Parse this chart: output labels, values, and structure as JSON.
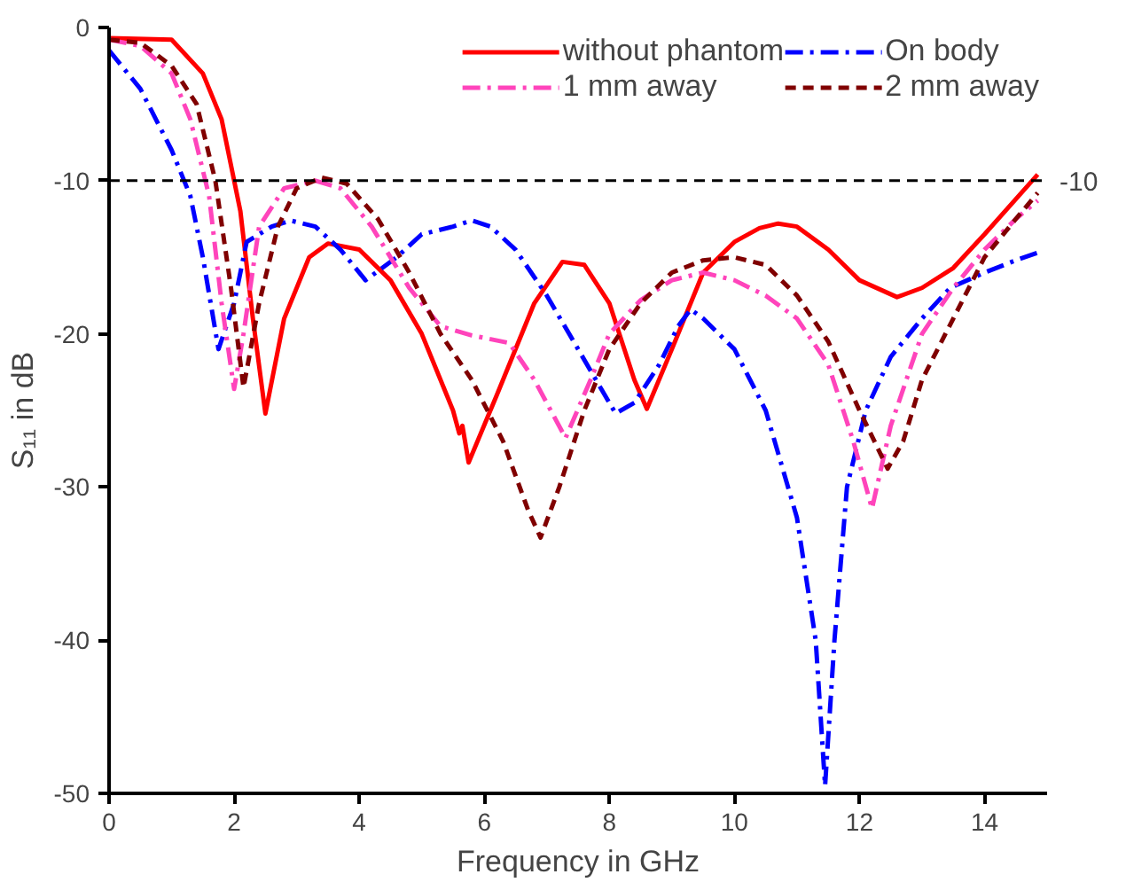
{
  "chart_data": {
    "type": "line",
    "xlabel": "Frequency in GHz",
    "ylabel": "S₁₁ in dB",
    "xlim": [
      0,
      15
    ],
    "ylim": [
      -50,
      0
    ],
    "xticks": [
      0,
      2,
      4,
      6,
      8,
      10,
      12,
      14
    ],
    "yticks": [
      0,
      -10,
      -20,
      -30,
      -40,
      -50
    ],
    "grid": false,
    "legend": "top right",
    "marker": "none",
    "ref_lines": [
      {
        "axis": "y",
        "value": -10,
        "label": "-10",
        "color": "#000000",
        "line_style": "dashed"
      }
    ],
    "series": [
      {
        "name": "without phantom",
        "color": "#ff0000",
        "line_style": "solid",
        "x": [
          0,
          1,
          1.5,
          1.8,
          2.1,
          2.3,
          2.5,
          2.8,
          3.2,
          3.5,
          4,
          4.5,
          5,
          5.5,
          5.6,
          5.65,
          5.75,
          6.2,
          6.8,
          7.25,
          7.6,
          8,
          8.4,
          8.6,
          9,
          9.5,
          10,
          10.4,
          10.7,
          11,
          11.5,
          12,
          12.6,
          13,
          13.5,
          14,
          14.5,
          14.85
        ],
        "values": [
          -0.7,
          -0.8,
          -3,
          -6,
          -12,
          -19,
          -25.2,
          -19,
          -15,
          -14.1,
          -14.5,
          -16.5,
          -20,
          -25,
          -26.5,
          -26,
          -28.4,
          -24,
          -18,
          -15.3,
          -15.5,
          -18,
          -23,
          -24.9,
          -21,
          -16,
          -14,
          -13.1,
          -12.8,
          -13,
          -14.5,
          -16.5,
          -17.6,
          -17,
          -15.7,
          -13.5,
          -11.2,
          -9.6
        ]
      },
      {
        "name": "On body",
        "color": "#0000ff",
        "line_style": "dashdot",
        "x": [
          0,
          0.5,
          1,
          1.3,
          1.5,
          1.75,
          2.0,
          2.2,
          2.6,
          2.9,
          3.3,
          3.7,
          4.1,
          4.6,
          5,
          5.5,
          5.8,
          6.1,
          6.5,
          7,
          7.5,
          8.1,
          8.4,
          8.8,
          9.1,
          9.3,
          9.5,
          10,
          10.5,
          11,
          11.3,
          11.45,
          11.6,
          11.8,
          12.1,
          12.5,
          13,
          13.45,
          14,
          14.5,
          14.85
        ],
        "values": [
          -1.5,
          -4,
          -8,
          -11,
          -15,
          -21,
          -18,
          -14,
          -13,
          -12.6,
          -13,
          -14.5,
          -16.5,
          -15,
          -13.5,
          -13,
          -12.6,
          -13,
          -14.5,
          -17.5,
          -21,
          -25.2,
          -24.5,
          -22,
          -19.5,
          -18.4,
          -19,
          -21,
          -25,
          -32,
          -40,
          -49.5,
          -40,
          -30,
          -25,
          -21.5,
          -19,
          -17,
          -16,
          -15.2,
          -14.7
        ]
      },
      {
        "name": "1 mm away",
        "color": "#ff44bb",
        "line_style": "dashdot",
        "x": [
          0,
          0.5,
          1,
          1.3,
          1.6,
          1.8,
          2.0,
          2.15,
          2.4,
          2.8,
          3.3,
          3.7,
          4.2,
          4.8,
          5.3,
          5.8,
          6.4,
          6.8,
          7.3,
          7.7,
          8,
          8.5,
          9,
          9.5,
          10,
          10.5,
          11,
          11.5,
          11.9,
          12.2,
          12.5,
          13,
          13.5,
          14,
          14.5,
          14.85
        ],
        "values": [
          -0.8,
          -1.2,
          -3,
          -6,
          -11,
          -18,
          -23.6,
          -20,
          -13,
          -10.5,
          -10,
          -10.5,
          -13,
          -17,
          -19.5,
          -20.1,
          -20.6,
          -23,
          -26.8,
          -23,
          -20,
          -17.8,
          -16.5,
          -16,
          -16.5,
          -17.5,
          -19,
          -22,
          -27,
          -31.4,
          -26,
          -20,
          -17,
          -14.5,
          -12.5,
          -11.3
        ]
      },
      {
        "name": "2 mm away",
        "color": "#800000",
        "line_style": "dashed",
        "x": [
          0,
          0.5,
          1,
          1.4,
          1.7,
          1.95,
          2.15,
          2.4,
          2.7,
          3.0,
          3.4,
          3.8,
          4.3,
          4.8,
          5.3,
          5.8,
          6.3,
          6.7,
          6.9,
          7.2,
          7.6,
          8,
          8.5,
          9,
          9.5,
          10,
          10.5,
          11,
          11.5,
          12,
          12.45,
          12.7,
          13,
          13.5,
          14,
          14.5,
          14.85
        ],
        "values": [
          -0.8,
          -1,
          -2.5,
          -5,
          -10,
          -17,
          -23.5,
          -18,
          -13,
          -10.5,
          -9.8,
          -10.2,
          -12.5,
          -16,
          -20,
          -23,
          -27,
          -31.5,
          -33.3,
          -30,
          -25,
          -21,
          -18,
          -16,
          -15.2,
          -15,
          -15.5,
          -17.5,
          -20.5,
          -25,
          -28.8,
          -27,
          -23,
          -19,
          -15,
          -12.5,
          -10.8
        ]
      }
    ]
  }
}
